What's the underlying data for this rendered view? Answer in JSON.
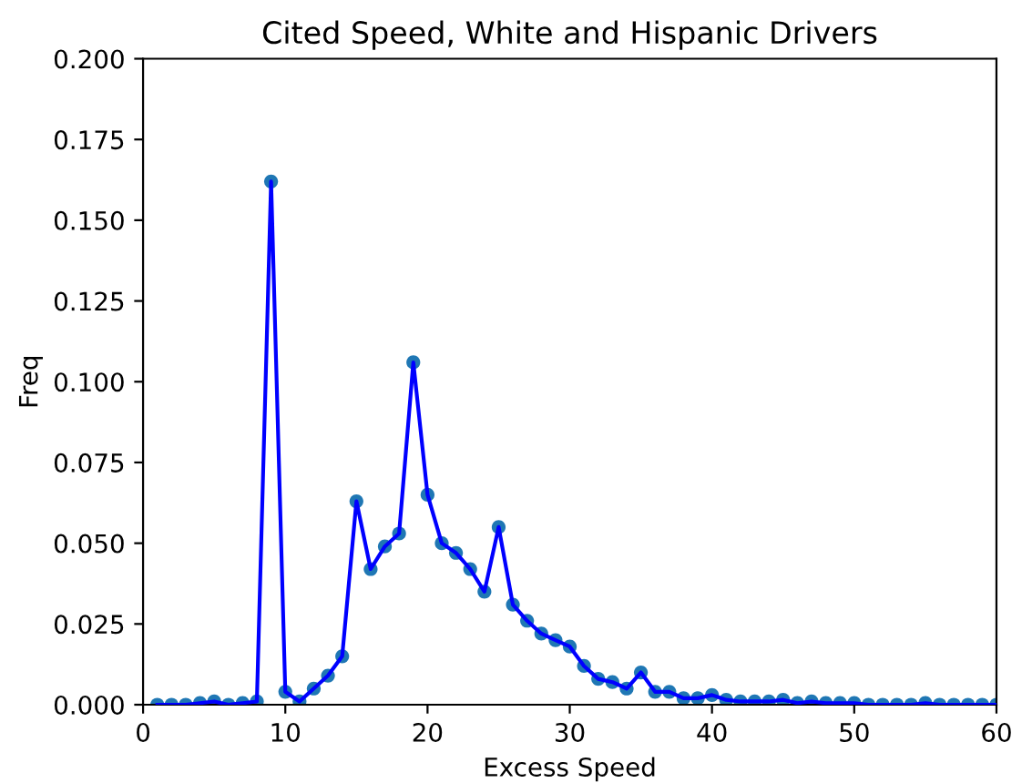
{
  "chart_data": {
    "type": "line",
    "title": "Cited Speed, White and Hispanic Drivers",
    "xlabel": "Excess Speed",
    "ylabel": "Freq",
    "x": [
      1,
      2,
      3,
      4,
      5,
      6,
      7,
      8,
      9,
      10,
      11,
      12,
      13,
      14,
      15,
      16,
      17,
      18,
      19,
      20,
      21,
      22,
      23,
      24,
      25,
      26,
      27,
      28,
      29,
      30,
      31,
      32,
      33,
      34,
      35,
      36,
      37,
      38,
      39,
      40,
      41,
      42,
      43,
      44,
      45,
      46,
      47,
      48,
      49,
      50,
      51,
      52,
      53,
      54,
      55,
      56,
      57,
      58,
      59,
      60
    ],
    "series": [
      {
        "type": "scatter",
        "color": "#1f77b4",
        "marker": "circle",
        "values": [
          0,
          0,
          0,
          0.0005,
          0.001,
          0,
          0.0005,
          0.001,
          0.162,
          0.004,
          0.001,
          0.005,
          0.009,
          0.015,
          0.063,
          0.042,
          0.049,
          0.053,
          0.106,
          0.065,
          0.05,
          0.047,
          0.042,
          0.035,
          0.055,
          0.031,
          0.026,
          0.022,
          0.02,
          0.018,
          0.012,
          0.008,
          0.007,
          0.005,
          0.01,
          0.004,
          0.004,
          0.002,
          0.002,
          0.003,
          0.0015,
          0.001,
          0.001,
          0.001,
          0.0015,
          0.0005,
          0.001,
          0.0005,
          0.0005,
          0.0005,
          0,
          0,
          0,
          0,
          0.0005,
          0,
          0,
          0,
          0,
          0
        ]
      },
      {
        "color": "#0000ff",
        "values": [
          0,
          0,
          0,
          0.0005,
          0.001,
          0,
          0.0005,
          0.001,
          0.162,
          0.004,
          0.001,
          0.005,
          0.009,
          0.015,
          0.063,
          0.042,
          0.049,
          0.053,
          0.106,
          0.065,
          0.05,
          0.047,
          0.042,
          0.035,
          0.055,
          0.031,
          0.026,
          0.022,
          0.02,
          0.018,
          0.012,
          0.008,
          0.007,
          0.005,
          0.01,
          0.004,
          0.004,
          0.002,
          0.002,
          0.003,
          0.0015,
          0.001,
          0.001,
          0.001,
          0.0015,
          0.0005,
          0.001,
          0.0005,
          0.0005,
          0.0005,
          0,
          0,
          0,
          0,
          0.0005,
          0,
          0,
          0,
          0,
          0
        ]
      }
    ],
    "xlim": [
      0,
      60
    ],
    "xticks": [
      0,
      10,
      20,
      30,
      40,
      50,
      60
    ],
    "ylim": [
      0,
      0.2
    ],
    "yticks": [
      {
        "value": 0,
        "label": "0.000"
      },
      {
        "value": 0.025,
        "label": "0.025"
      },
      {
        "value": 0.05,
        "label": "0.050"
      },
      {
        "value": 0.075,
        "label": "0.075"
      },
      {
        "value": 0.1,
        "label": "0.100"
      },
      {
        "value": 0.125,
        "label": "0.125"
      },
      {
        "value": 0.15,
        "label": "0.150"
      },
      {
        "value": 0.175,
        "label": "0.175"
      },
      {
        "value": 0.2,
        "label": "0.200"
      }
    ],
    "grid": false
  }
}
